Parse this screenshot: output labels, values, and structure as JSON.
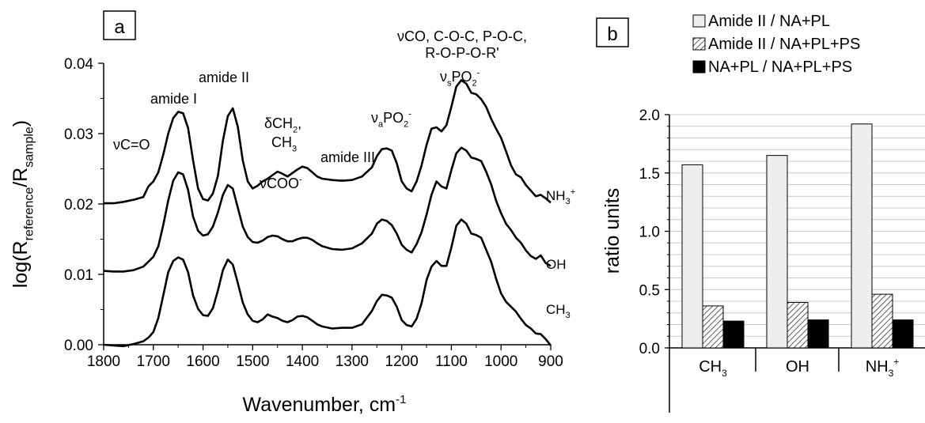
{
  "chart_data": [
    {
      "type": "line",
      "panel_label": "a",
      "xlabel_main": "Wavenumber, cm",
      "xlabel_sup": "-1",
      "ylabel_parts": [
        {
          "t": "log(R",
          "s": "n"
        },
        {
          "t": "reference",
          "s": "sub"
        },
        {
          "t": "/R",
          "s": "n"
        },
        {
          "t": "sample",
          "s": "sub"
        },
        {
          "t": ")",
          "s": "n"
        }
      ],
      "xlim": [
        1800,
        900
      ],
      "ylim": [
        0.0,
        0.04
      ],
      "x_ticks": [
        1800,
        1700,
        1600,
        1500,
        1400,
        1300,
        1200,
        1100,
        1000,
        900
      ],
      "y_ticks": [
        "0.00",
        "0.01",
        "0.02",
        "0.03",
        "0.04"
      ],
      "series": [
        {
          "parts": [
            {
              "t": "NH",
              "s": "n"
            },
            {
              "t": "3",
              "s": "sub"
            },
            {
              "t": "+",
              "s": "sup"
            }
          ],
          "x": [
            1800,
            1780,
            1760,
            1740,
            1720,
            1710,
            1700,
            1690,
            1680,
            1670,
            1660,
            1650,
            1640,
            1630,
            1620,
            1610,
            1600,
            1590,
            1580,
            1570,
            1560,
            1550,
            1540,
            1530,
            1520,
            1510,
            1500,
            1490,
            1480,
            1470,
            1460,
            1450,
            1440,
            1430,
            1420,
            1410,
            1400,
            1390,
            1380,
            1370,
            1360,
            1340,
            1320,
            1300,
            1280,
            1260,
            1250,
            1240,
            1230,
            1220,
            1210,
            1200,
            1190,
            1180,
            1170,
            1160,
            1150,
            1140,
            1130,
            1120,
            1110,
            1100,
            1090,
            1080,
            1070,
            1060,
            1050,
            1040,
            1030,
            1020,
            1010,
            1000,
            990,
            980,
            970,
            960,
            950,
            940,
            930,
            920,
            910,
            900
          ],
          "y": [
            0.0201,
            0.0201,
            0.0203,
            0.0206,
            0.021,
            0.0225,
            0.0232,
            0.0245,
            0.027,
            0.03,
            0.0322,
            0.0331,
            0.0329,
            0.0308,
            0.0262,
            0.0222,
            0.0207,
            0.0205,
            0.0215,
            0.024,
            0.029,
            0.0325,
            0.0336,
            0.031,
            0.0262,
            0.0232,
            0.0222,
            0.0226,
            0.0232,
            0.0236,
            0.0241,
            0.0246,
            0.0243,
            0.0239,
            0.0244,
            0.0249,
            0.0253,
            0.0251,
            0.0245,
            0.0239,
            0.0236,
            0.0234,
            0.0233,
            0.0234,
            0.0239,
            0.0252,
            0.0268,
            0.0278,
            0.0279,
            0.0276,
            0.0258,
            0.0232,
            0.0222,
            0.0218,
            0.0232,
            0.0255,
            0.0284,
            0.0307,
            0.0309,
            0.0303,
            0.0312,
            0.0338,
            0.0367,
            0.0376,
            0.0371,
            0.0358,
            0.0356,
            0.0349,
            0.0338,
            0.0321,
            0.0307,
            0.0294,
            0.0275,
            0.0255,
            0.0242,
            0.0238,
            0.0227,
            0.0219,
            0.0211,
            0.0213,
            0.0208,
            0.0202
          ]
        },
        {
          "parts": [
            {
              "t": "OH",
              "s": "n"
            }
          ],
          "x": [
            1800,
            1780,
            1760,
            1740,
            1720,
            1710,
            1700,
            1690,
            1680,
            1670,
            1660,
            1650,
            1640,
            1630,
            1620,
            1610,
            1600,
            1590,
            1580,
            1570,
            1560,
            1550,
            1540,
            1530,
            1520,
            1510,
            1500,
            1490,
            1480,
            1470,
            1460,
            1450,
            1440,
            1430,
            1420,
            1410,
            1400,
            1390,
            1380,
            1370,
            1360,
            1340,
            1320,
            1300,
            1280,
            1260,
            1250,
            1240,
            1230,
            1220,
            1210,
            1200,
            1190,
            1180,
            1170,
            1160,
            1150,
            1140,
            1130,
            1120,
            1110,
            1100,
            1090,
            1080,
            1070,
            1060,
            1050,
            1040,
            1030,
            1020,
            1010,
            1000,
            990,
            980,
            970,
            960,
            950,
            940,
            930,
            920,
            910,
            900
          ],
          "y": [
            0.0105,
            0.0104,
            0.0104,
            0.0106,
            0.0111,
            0.0118,
            0.0125,
            0.014,
            0.017,
            0.0205,
            0.0233,
            0.0245,
            0.0242,
            0.022,
            0.0182,
            0.0162,
            0.0155,
            0.0157,
            0.0168,
            0.0188,
            0.0213,
            0.0227,
            0.0222,
            0.0195,
            0.0168,
            0.0153,
            0.0146,
            0.0145,
            0.0148,
            0.0153,
            0.0155,
            0.0154,
            0.015,
            0.0147,
            0.0147,
            0.015,
            0.0152,
            0.0152,
            0.0149,
            0.0144,
            0.014,
            0.0136,
            0.0135,
            0.0137,
            0.0144,
            0.0158,
            0.0172,
            0.0178,
            0.0176,
            0.017,
            0.0158,
            0.0142,
            0.0135,
            0.0131,
            0.0143,
            0.016,
            0.0185,
            0.0213,
            0.0232,
            0.0225,
            0.0222,
            0.0248,
            0.0272,
            0.028,
            0.0276,
            0.0266,
            0.0264,
            0.0261,
            0.0246,
            0.0228,
            0.0205,
            0.0187,
            0.0172,
            0.0163,
            0.0152,
            0.0145,
            0.0134,
            0.0126,
            0.0122,
            0.0127,
            0.0116,
            0.0112
          ]
        },
        {
          "parts": [
            {
              "t": "CH",
              "s": "n"
            },
            {
              "t": "3",
              "s": "sub"
            }
          ],
          "x": [
            1800,
            1780,
            1760,
            1740,
            1720,
            1710,
            1700,
            1690,
            1680,
            1670,
            1660,
            1650,
            1640,
            1630,
            1620,
            1610,
            1600,
            1590,
            1580,
            1570,
            1560,
            1550,
            1540,
            1530,
            1520,
            1510,
            1500,
            1490,
            1480,
            1470,
            1460,
            1450,
            1440,
            1430,
            1420,
            1410,
            1400,
            1390,
            1380,
            1370,
            1360,
            1340,
            1320,
            1300,
            1280,
            1260,
            1250,
            1240,
            1230,
            1220,
            1210,
            1200,
            1190,
            1180,
            1170,
            1160,
            1150,
            1140,
            1130,
            1120,
            1110,
            1100,
            1090,
            1080,
            1070,
            1060,
            1050,
            1040,
            1030,
            1020,
            1010,
            1000,
            990,
            980,
            970,
            960,
            950,
            940,
            930,
            920,
            910,
            900
          ],
          "y": [
            0.0,
            -0.0001,
            -0.0002,
            0.0001,
            0.0005,
            0.001,
            0.0018,
            0.0038,
            0.007,
            0.0103,
            0.0119,
            0.0124,
            0.0121,
            0.0103,
            0.007,
            0.0051,
            0.0042,
            0.0041,
            0.0052,
            0.0077,
            0.0106,
            0.0121,
            0.0114,
            0.0088,
            0.006,
            0.0043,
            0.0034,
            0.0032,
            0.0036,
            0.0043,
            0.004,
            0.0038,
            0.0034,
            0.0032,
            0.0035,
            0.004,
            0.0041,
            0.0039,
            0.0034,
            0.0029,
            0.0026,
            0.0023,
            0.0024,
            0.0024,
            0.0029,
            0.0048,
            0.0062,
            0.0071,
            0.007,
            0.0067,
            0.0054,
            0.0035,
            0.0028,
            0.0026,
            0.0037,
            0.0059,
            0.0092,
            0.0111,
            0.0119,
            0.0112,
            0.0112,
            0.0138,
            0.0169,
            0.0178,
            0.0172,
            0.0158,
            0.0156,
            0.0152,
            0.0135,
            0.0118,
            0.0094,
            0.0073,
            0.0061,
            0.0054,
            0.0047,
            0.0037,
            0.0028,
            0.0023,
            0.0016,
            0.0015,
            0.0008,
            -0.0001
          ]
        }
      ],
      "annotations": [
        {
          "id": "nuco",
          "parts": [
            {
              "t": "νC=O",
              "s": "n"
            }
          ]
        },
        {
          "id": "amide-i",
          "parts": [
            {
              "t": "amide I",
              "s": "n"
            }
          ]
        },
        {
          "id": "amide-ii",
          "parts": [
            {
              "t": "amide II",
              "s": "n"
            }
          ]
        },
        {
          "id": "delta-ch2",
          "parts": [
            {
              "t": "δCH",
              "s": "n"
            },
            {
              "t": "2",
              "s": "sub"
            },
            {
              "t": ",",
              "s": "n"
            }
          ]
        },
        {
          "id": "ch3",
          "parts": [
            {
              "t": "CH",
              "s": "n"
            },
            {
              "t": "3",
              "s": "sub"
            }
          ]
        },
        {
          "id": "nucoo",
          "parts": [
            {
              "t": "νCOO",
              "s": "n"
            },
            {
              "t": "-",
              "s": "sup"
            }
          ]
        },
        {
          "id": "amide-iii",
          "parts": [
            {
              "t": "amide III",
              "s": "n"
            }
          ]
        },
        {
          "id": "nuapo2",
          "parts": [
            {
              "t": "ν",
              "s": "n"
            },
            {
              "t": "a",
              "s": "sub"
            },
            {
              "t": "PO",
              "s": "n"
            },
            {
              "t": "2",
              "s": "sub"
            },
            {
              "t": "-",
              "s": "sup"
            }
          ]
        },
        {
          "id": "nuco-coc",
          "parts": [
            {
              "t": "νCO, C-O-C, P-O-C,",
              "s": "n"
            }
          ]
        },
        {
          "id": "ropor",
          "parts": [
            {
              "t": "R-O-P-O-R'",
              "s": "n"
            }
          ]
        },
        {
          "id": "nuspo2",
          "parts": [
            {
              "t": "ν",
              "s": "n"
            },
            {
              "t": "s",
              "s": "sub"
            },
            {
              "t": "PO",
              "s": "n"
            },
            {
              "t": "2",
              "s": "sub"
            },
            {
              "t": "-",
              "s": "sup"
            }
          ]
        }
      ]
    },
    {
      "type": "bar",
      "panel_label": "b",
      "ylabel": "ratio units",
      "ylim": [
        0.0,
        2.0
      ],
      "y_ticks": [
        "0.0",
        "0.5",
        "1.0",
        "1.5",
        "2.0"
      ],
      "grid": true,
      "legend_placement": "top",
      "categories": [
        [
          {
            "t": "CH",
            "s": "n"
          },
          {
            "t": "3",
            "s": "sub"
          }
        ],
        [
          {
            "t": "OH",
            "s": "n"
          }
        ],
        [
          {
            "t": "NH",
            "s": "n"
          },
          {
            "t": "3",
            "s": "sub"
          },
          {
            "t": "+",
            "s": "sup"
          }
        ]
      ],
      "series": [
        {
          "name": "Amide II / NA+PL",
          "values": [
            1.57,
            1.65,
            1.92
          ],
          "fill": "#eeeeee"
        },
        {
          "name": "Amide II / NA+PL+PS",
          "values": [
            0.36,
            0.39,
            0.46
          ],
          "fill": "hatch"
        },
        {
          "name": "NA+PL / NA+PL+PS",
          "values": [
            0.23,
            0.24,
            0.24
          ],
          "fill": "#000000"
        }
      ]
    }
  ]
}
